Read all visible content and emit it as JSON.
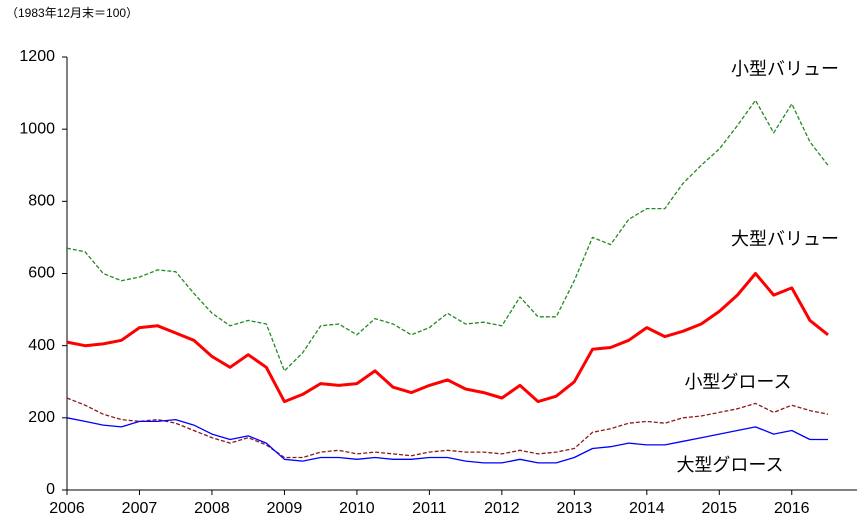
{
  "chart_data": {
    "type": "line",
    "subtitle": "（1983年12月末＝100）",
    "x": [
      2006,
      2006.25,
      2006.5,
      2006.75,
      2007,
      2007.25,
      2007.5,
      2007.75,
      2008,
      2008.25,
      2008.5,
      2008.75,
      2009,
      2009.25,
      2009.5,
      2009.75,
      2010,
      2010.25,
      2010.5,
      2010.75,
      2011,
      2011.25,
      2011.5,
      2011.75,
      2012,
      2012.25,
      2012.5,
      2012.75,
      2013,
      2013.25,
      2013.5,
      2013.75,
      2014,
      2014.25,
      2014.5,
      2014.75,
      2015,
      2015.25,
      2015.5,
      2015.75,
      2016,
      2016.25,
      2016.5
    ],
    "series": [
      {
        "name": "小型バリュー",
        "color": "#228b22",
        "dash": true,
        "width": 1.3,
        "values": [
          670,
          660,
          600,
          580,
          590,
          610,
          605,
          545,
          490,
          455,
          470,
          460,
          330,
          380,
          455,
          460,
          430,
          475,
          460,
          430,
          450,
          490,
          460,
          465,
          455,
          535,
          480,
          480,
          580,
          700,
          680,
          750,
          780,
          780,
          850,
          900,
          945,
          1010,
          1080,
          990,
          1070,
          965,
          900
        ]
      },
      {
        "name": "大型バリュー",
        "color": "#ff0000",
        "dash": false,
        "width": 3,
        "values": [
          410,
          400,
          405,
          415,
          450,
          455,
          435,
          415,
          370,
          340,
          375,
          340,
          245,
          265,
          295,
          290,
          295,
          330,
          285,
          270,
          290,
          305,
          280,
          270,
          255,
          290,
          245,
          260,
          300,
          390,
          395,
          415,
          450,
          425,
          440,
          460,
          495,
          540,
          600,
          540,
          560,
          470,
          430
        ]
      },
      {
        "name": "小型グロース",
        "color": "#8b1a1a",
        "dash": true,
        "width": 1.3,
        "values": [
          255,
          235,
          210,
          195,
          190,
          195,
          185,
          165,
          145,
          130,
          145,
          125,
          90,
          90,
          105,
          110,
          100,
          105,
          100,
          95,
          105,
          110,
          105,
          105,
          100,
          110,
          100,
          105,
          115,
          160,
          170,
          185,
          190,
          185,
          200,
          205,
          215,
          225,
          240,
          215,
          235,
          220,
          210
        ]
      },
      {
        "name": "大型グロース",
        "color": "#0000ff",
        "dash": false,
        "width": 1.3,
        "values": [
          200,
          190,
          180,
          175,
          190,
          190,
          195,
          180,
          155,
          140,
          150,
          130,
          85,
          80,
          90,
          90,
          85,
          90,
          85,
          85,
          90,
          90,
          80,
          75,
          75,
          85,
          75,
          75,
          90,
          115,
          120,
          130,
          125,
          125,
          135,
          145,
          155,
          165,
          175,
          155,
          165,
          140,
          140
        ]
      }
    ],
    "xlim": [
      2006,
      2016.9
    ],
    "xticks": [
      2006,
      2007,
      2008,
      2009,
      2010,
      2011,
      2012,
      2013,
      2014,
      2015,
      2016
    ],
    "ylim": [
      0,
      1200
    ],
    "yticks": [
      0,
      200,
      400,
      600,
      800,
      1000,
      1200
    ],
    "grid": false
  }
}
